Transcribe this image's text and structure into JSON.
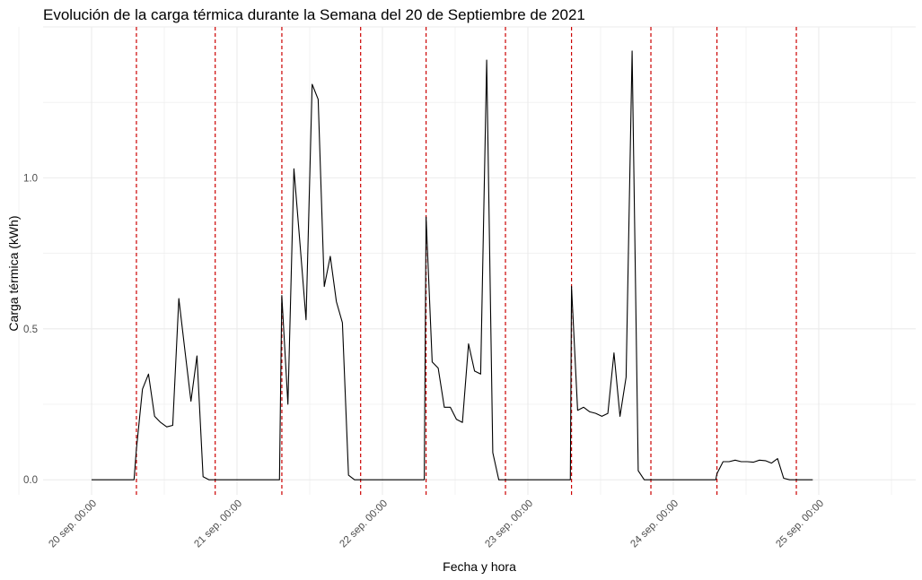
{
  "chart_data": {
    "type": "line",
    "title": "Evolución de la carga térmica durante la Semana del 20 de Septiembre de 2021",
    "xlabel": "Fecha y hora",
    "ylabel": "Carga térmica (kWh)",
    "y_ticks": [
      0.0,
      0.5,
      1.0
    ],
    "y_tick_labels": [
      "0.0",
      "0.5",
      "1.0"
    ],
    "ylim": [
      -0.05,
      1.5
    ],
    "xlim_hours": [
      -8,
      136
    ],
    "x_ticks": [
      {
        "hour": 0,
        "label": "20 sep. 00:00"
      },
      {
        "hour": 24,
        "label": "21 sep. 00:00"
      },
      {
        "hour": 48,
        "label": "22 sep. 00:00"
      },
      {
        "hour": 72,
        "label": "23 sep. 00:00"
      },
      {
        "hour": 96,
        "label": "24 sep. 00:00"
      },
      {
        "hour": 120,
        "label": "25 sep. 00:00"
      }
    ],
    "grid": true,
    "line_color": "#000000",
    "vline_color": "#cc0000",
    "vlines_hours": [
      7.4,
      20.4,
      31.4,
      44.4,
      55.2,
      68.3,
      79.2,
      92.3,
      103.2,
      116.3
    ],
    "series": [
      {
        "hours": [
          0,
          7.0,
          7.4,
          8.4,
          9.4,
          10.4,
          11.4,
          12.4,
          13.4,
          14.4,
          15.4,
          16.4,
          17.4,
          18.4,
          19.4,
          20.4,
          24,
          31.0,
          31.4,
          32.4,
          33.4,
          34.4,
          35.4,
          36.4,
          37.4,
          38.4,
          39.4,
          40.4,
          41.4,
          42.4,
          43.4,
          44.4,
          48,
          54.9,
          55.2,
          56.2,
          57.2,
          58.2,
          59.2,
          60.2,
          61.2,
          62.2,
          63.2,
          64.2,
          65.2,
          66.2,
          67.2,
          68.2,
          72,
          79.0,
          79.2,
          80.2,
          81.2,
          82.2,
          83.2,
          84.2,
          85.2,
          86.2,
          87.2,
          88.2,
          89.2,
          90.2,
          91.2,
          92.3,
          96,
          103.0,
          103.2,
          104.2,
          105.2,
          106.2,
          107.2,
          108.2,
          109.2,
          110.2,
          111.2,
          112.2,
          113.2,
          114.2,
          115.2,
          116.3,
          119
        ],
        "values": [
          0,
          0,
          0.1,
          0.3,
          0.35,
          0.21,
          0.19,
          0.175,
          0.18,
          0.6,
          0.43,
          0.26,
          0.41,
          0.01,
          0,
          0,
          0,
          0,
          0.61,
          0.25,
          1.03,
          0.78,
          0.53,
          1.31,
          1.26,
          0.64,
          0.74,
          0.59,
          0.52,
          0.015,
          0,
          0,
          0,
          0,
          0.87,
          0.39,
          0.37,
          0.24,
          0.24,
          0.2,
          0.19,
          0.45,
          0.36,
          0.35,
          1.39,
          0.09,
          0,
          0,
          0,
          0,
          0.64,
          0.23,
          0.24,
          0.225,
          0.22,
          0.21,
          0.22,
          0.42,
          0.21,
          0.34,
          1.42,
          0.03,
          0,
          0,
          0,
          0,
          0.02,
          0.06,
          0.06,
          0.065,
          0.06,
          0.06,
          0.058,
          0.065,
          0.063,
          0.055,
          0.07,
          0.005,
          0,
          0,
          0
        ]
      }
    ]
  }
}
